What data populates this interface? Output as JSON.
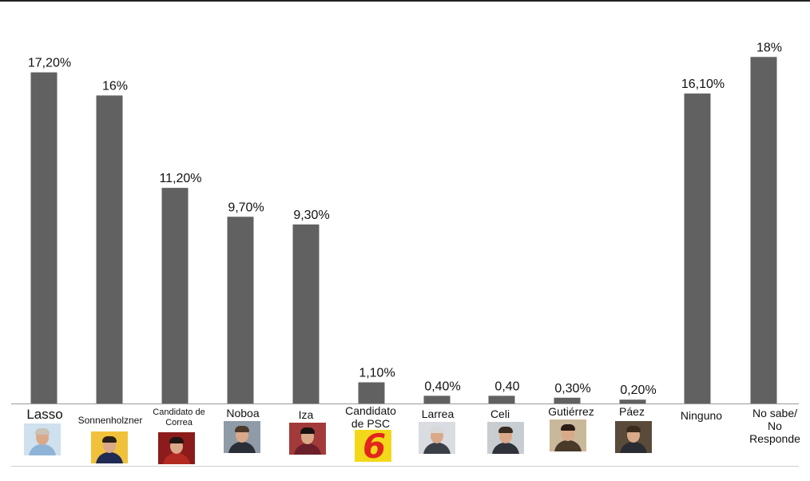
{
  "chart_data": {
    "type": "bar",
    "title": "",
    "xlabel": "",
    "ylabel": "",
    "ylim": [
      0,
      18.8
    ],
    "grid": false,
    "legend": "none",
    "colors": {
      "bar": "#616161",
      "axis": "#9a9a9a",
      "text": "#111111"
    },
    "categories": [
      "Lasso",
      "Sonnenholzner",
      "Candidato de\nCorrea",
      "Noboa",
      "Iza",
      "Candidato\nde PSC",
      "Larrea",
      "Celi",
      "Gutiérrez",
      "Páez",
      "Ninguno",
      "No sabe/\nNo\nResponde"
    ],
    "values": [
      17.2,
      16,
      11.2,
      9.7,
      9.3,
      1.1,
      0.4,
      0.4,
      0.3,
      0.2,
      16.1,
      18
    ],
    "data_labels": [
      "17,20%",
      "16%",
      "11,20%",
      "9,70%",
      "9,30%",
      "1,10%",
      "0,40%",
      "0,40",
      "0,30%",
      "0,20%",
      "16,10%",
      "18%"
    ],
    "category_images": [
      "portrait-photo-lasso",
      "portrait-photo-sonnenholzner",
      "portrait-photo-correa-candidate",
      "portrait-photo-noboa",
      "portrait-photo-iza",
      "psc-list-6-logo",
      "portrait-photo-larrea",
      "portrait-photo-celi",
      "portrait-photo-gutierrez",
      "portrait-photo-paez",
      "",
      ""
    ]
  }
}
